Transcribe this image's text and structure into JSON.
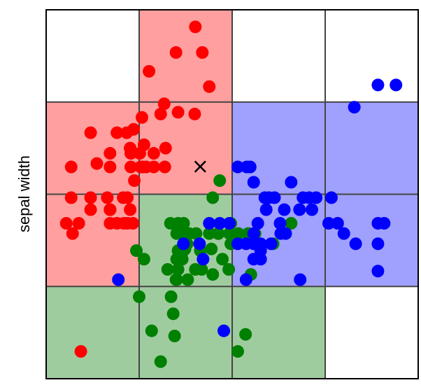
{
  "chart_data": {
    "type": "scatter",
    "ylabel": "sepal width",
    "xlabel": "",
    "grid": {
      "x_edges": [
        0,
        1,
        2,
        3,
        4
      ],
      "y_edges": [
        0,
        1,
        2,
        3,
        4
      ]
    },
    "cells": [
      {
        "col": 0,
        "row": 3,
        "fill": "#ffffff"
      },
      {
        "col": 1,
        "row": 3,
        "fill": "#ff9f9f"
      },
      {
        "col": 2,
        "row": 3,
        "fill": "#ffffff"
      },
      {
        "col": 3,
        "row": 3,
        "fill": "#ffffff"
      },
      {
        "col": 0,
        "row": 2,
        "fill": "#ff9f9f"
      },
      {
        "col": 1,
        "row": 2,
        "fill": "#ff9f9f"
      },
      {
        "col": 2,
        "row": 2,
        "fill": "#a0a0ff"
      },
      {
        "col": 3,
        "row": 2,
        "fill": "#a0a0ff"
      },
      {
        "col": 0,
        "row": 1,
        "fill": "#ff9f9f"
      },
      {
        "col": 1,
        "row": 1,
        "fill": "#9fcc9f"
      },
      {
        "col": 2,
        "row": 1,
        "fill": "#a0a0ff"
      },
      {
        "col": 3,
        "row": 1,
        "fill": "#a0a0ff"
      },
      {
        "col": 0,
        "row": 0,
        "fill": "#9fcc9f"
      },
      {
        "col": 1,
        "row": 0,
        "fill": "#9fcc9f"
      },
      {
        "col": 2,
        "row": 0,
        "fill": "#9fcc9f"
      },
      {
        "col": 3,
        "row": 0,
        "fill": "#ffffff"
      }
    ],
    "series": [
      {
        "color": "#ff0000",
        "points": [
          [
            1.604,
            3.815
          ],
          [
            1.396,
            3.537
          ],
          [
            1.106,
            3.333
          ],
          [
            1.679,
            3.537
          ],
          [
            1.754,
            3.167
          ],
          [
            1.269,
            2.981
          ],
          [
            1.418,
            2.889
          ],
          [
            1.03,
            2.833
          ],
          [
            1.231,
            2.87
          ],
          [
            1.597,
            2.87
          ],
          [
            0.478,
            2.667
          ],
          [
            0.761,
            2.667
          ],
          [
            0.866,
            2.667
          ],
          [
            0.903,
            2.5
          ],
          [
            0.94,
            2.704
          ],
          [
            1.052,
            2.537
          ],
          [
            0.91,
            2.444
          ],
          [
            1.007,
            2.444
          ],
          [
            1.157,
            2.444
          ],
          [
            1.284,
            2.5
          ],
          [
            0.687,
            2.296
          ],
          [
            0.91,
            2.296
          ],
          [
            1.037,
            2.296
          ],
          [
            1.075,
            2.296
          ],
          [
            1.157,
            2.296
          ],
          [
            1.276,
            2.296
          ],
          [
            0.269,
            2.296
          ],
          [
            0.545,
            2.333
          ],
          [
            0.687,
            2.444
          ],
          [
            1.016,
            2.296
          ],
          [
            0.269,
            1.963
          ],
          [
            0.478,
            1.963
          ],
          [
            0.657,
            1.963
          ],
          [
            0.873,
            1.963
          ],
          [
            0.828,
            1.963
          ],
          [
            0.948,
            2.148
          ],
          [
            0.478,
            1.833
          ],
          [
            0.687,
            1.833
          ],
          [
            0.687,
            1.833
          ],
          [
            0.687,
            1.833
          ],
          [
            0.216,
            1.685
          ],
          [
            0.351,
            1.685
          ],
          [
            0.687,
            1.685
          ],
          [
            0.761,
            1.685
          ],
          [
            0.836,
            1.685
          ],
          [
            0.903,
            1.833
          ],
          [
            0.284,
            1.574
          ],
          [
            0.373,
            0.296
          ],
          [
            0.933,
            1.685
          ],
          [
            0.873,
            1.685
          ]
        ]
      },
      {
        "color": "#008000",
        "points": [
          [
            1.866,
            2.148
          ],
          [
            1.791,
            1.963
          ],
          [
            1.336,
            1.685
          ],
          [
            1.418,
            1.685
          ],
          [
            1.478,
            1.685
          ],
          [
            1.403,
            1.574
          ],
          [
            1.478,
            1.574
          ],
          [
            1.537,
            1.574
          ],
          [
            1.612,
            1.574
          ],
          [
            1.754,
            1.574
          ],
          [
            1.851,
            1.574
          ],
          [
            1.97,
            1.574
          ],
          [
            2.067,
            1.574
          ],
          [
            2.172,
            1.574
          ],
          [
            2.246,
            1.574
          ],
          [
            1.985,
            1.685
          ],
          [
            1.985,
            1.463
          ],
          [
            2.246,
            1.463
          ],
          [
            2.44,
            1.463
          ],
          [
            2.634,
            1.685
          ],
          [
            1.515,
            1.463
          ],
          [
            1.418,
            1.389
          ],
          [
            1.478,
            1.389
          ],
          [
            1.403,
            1.296
          ],
          [
            1.463,
            1.296
          ],
          [
            1.657,
            1.389
          ],
          [
            1.895,
            1.296
          ],
          [
            1.052,
            1.296
          ],
          [
            1.306,
            1.185
          ],
          [
            1.418,
            1.185
          ],
          [
            1.403,
            1.074
          ],
          [
            1.604,
            1.185
          ],
          [
            1.672,
            1.185
          ],
          [
            1.776,
            1.407
          ],
          [
            1.493,
            1.407
          ],
          [
            1.396,
            1.074
          ],
          [
            1.522,
            1.074
          ],
          [
            1.963,
            1.185
          ],
          [
            1.851,
            1.574
          ],
          [
            1.791,
            1.13
          ],
          [
            0.97,
            1.389
          ],
          [
            1.0,
            0.889
          ],
          [
            2.201,
            1.13
          ],
          [
            1.343,
            0.889
          ],
          [
            1.366,
            0.704
          ],
          [
            1.381,
            0.463
          ],
          [
            2.06,
            0.296
          ],
          [
            2.144,
            0.481
          ],
          [
            1.134,
            0.519
          ],
          [
            1.231,
            0.185
          ]
        ]
      },
      {
        "color": "#0000ff",
        "points": [
          [
            3.567,
            3.185
          ],
          [
            3.761,
            3.185
          ],
          [
            3.313,
            2.944
          ],
          [
            2.06,
            2.296
          ],
          [
            2.157,
            2.296
          ],
          [
            2.194,
            2.296
          ],
          [
            2.231,
            2.13
          ],
          [
            2.351,
            1.963
          ],
          [
            2.396,
            1.963
          ],
          [
            2.455,
            1.963
          ],
          [
            2.634,
            2.13
          ],
          [
            2.761,
            1.963
          ],
          [
            2.828,
            1.963
          ],
          [
            2.903,
            1.963
          ],
          [
            3.067,
            1.963
          ],
          [
            2.366,
            1.833
          ],
          [
            2.56,
            1.833
          ],
          [
            2.724,
            1.833
          ],
          [
            2.857,
            1.833
          ],
          [
            2.276,
            1.685
          ],
          [
            2.515,
            1.685
          ],
          [
            3.037,
            1.685
          ],
          [
            3.134,
            1.685
          ],
          [
            3.567,
            1.685
          ],
          [
            3.634,
            1.685
          ],
          [
            1.754,
            1.685
          ],
          [
            1.866,
            1.685
          ],
          [
            1.97,
            1.685
          ],
          [
            2.522,
            1.574
          ],
          [
            2.231,
            1.574
          ],
          [
            2.575,
            1.574
          ],
          [
            3.201,
            1.574
          ],
          [
            2.06,
            1.463
          ],
          [
            2.149,
            1.463
          ],
          [
            2.231,
            1.463
          ],
          [
            2.306,
            1.463
          ],
          [
            2.418,
            1.463
          ],
          [
            1.476,
            1.463
          ],
          [
            1.649,
            1.463
          ],
          [
            3.328,
            1.463
          ],
          [
            3.567,
            1.463
          ],
          [
            2.306,
            1.389
          ],
          [
            1.687,
            1.296
          ],
          [
            2.231,
            1.296
          ],
          [
            2.306,
            1.296
          ],
          [
            3.567,
            1.167
          ],
          [
            0.776,
            1.074
          ],
          [
            2.731,
            1.074
          ],
          [
            2.149,
            1.074
          ],
          [
            1.91,
            0.519
          ]
        ]
      }
    ],
    "marker": {
      "symbol": "×",
      "x": 1.657,
      "y": 2.296,
      "color": "#000000"
    }
  }
}
